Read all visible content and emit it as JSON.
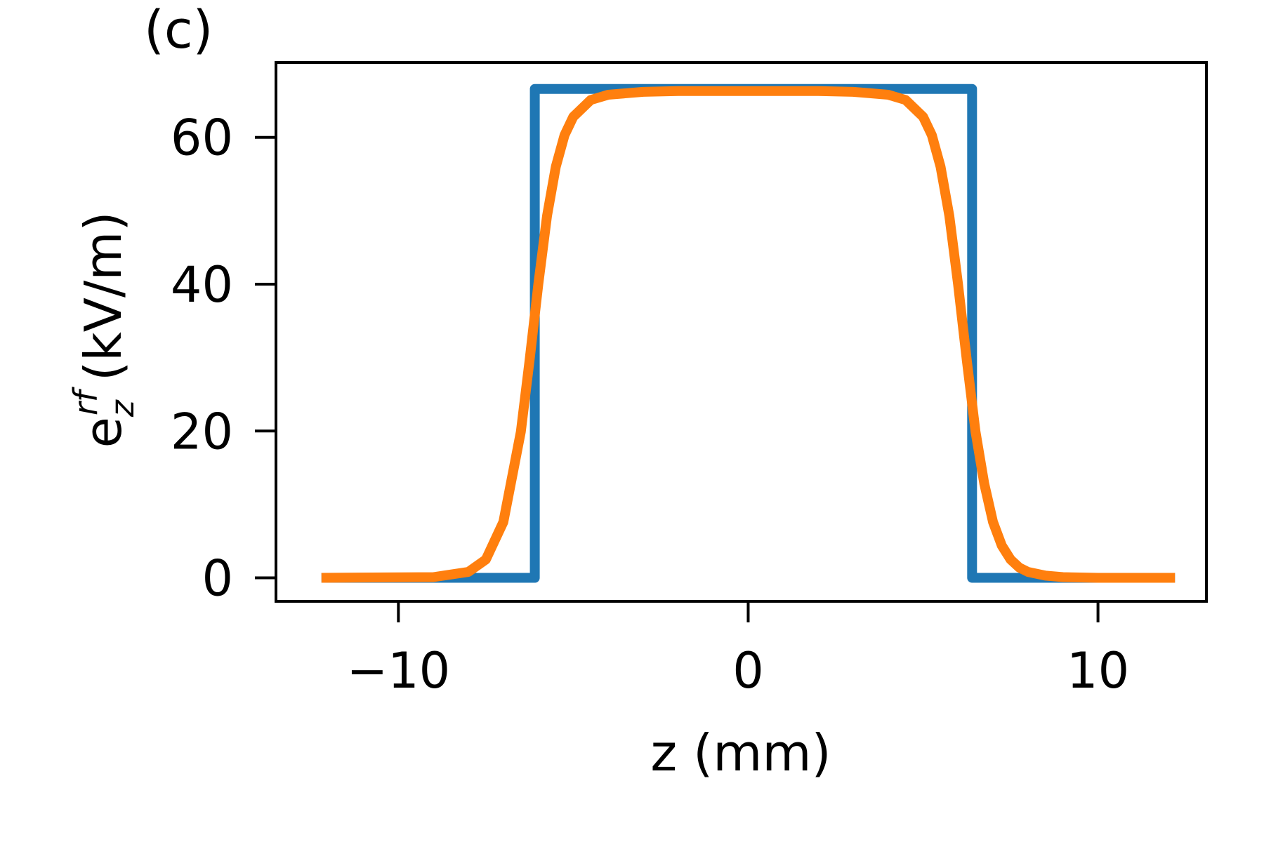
{
  "chart_data": {
    "type": "line",
    "panel_label": "(c)",
    "xlabel": "z (mm)",
    "ylabel": {
      "base": "e",
      "subscript": "z",
      "superscript": "rf",
      "unit": "(kV/m)"
    },
    "xlim": [
      -13.5,
      13.1
    ],
    "ylim": [
      -3.2,
      70.2
    ],
    "xticks": [
      -10,
      0,
      10
    ],
    "xtick_labels": [
      "−10",
      "0",
      "10"
    ],
    "yticks": [
      0,
      20,
      40,
      60
    ],
    "ytick_labels": [
      "0",
      "20",
      "40",
      "60"
    ],
    "grid": false,
    "series": [
      {
        "color": "#1f77b4",
        "x": [
          -12.2,
          -6.1,
          -6.1,
          6.4,
          6.4,
          12.2
        ],
        "y": [
          0,
          0,
          66.6,
          66.6,
          0,
          0
        ]
      },
      {
        "color": "#ff7f0e",
        "x": [
          -12.2,
          -9.0,
          -8.0,
          -7.5,
          -7.0,
          -6.5,
          -6.25,
          -6.0,
          -5.75,
          -5.5,
          -5.25,
          -5.0,
          -4.5,
          -4.0,
          -3.0,
          -2.0,
          0.0,
          2.0,
          3.0,
          4.0,
          4.5,
          5.0,
          5.25,
          5.5,
          5.75,
          6.0,
          6.25,
          6.5,
          6.75,
          7.0,
          7.25,
          7.5,
          7.75,
          8.0,
          8.5,
          9.0,
          10.0,
          12.2
        ],
        "y": [
          0,
          0.1,
          0.8,
          2.5,
          7.6,
          19.9,
          29.6,
          40.0,
          49.3,
          56.0,
          60.3,
          62.8,
          65.1,
          65.8,
          66.2,
          66.3,
          66.3,
          66.3,
          66.2,
          65.8,
          65.1,
          62.8,
          60.3,
          56.0,
          49.3,
          40.0,
          29.6,
          19.9,
          12.8,
          7.6,
          4.4,
          2.5,
          1.4,
          0.8,
          0.3,
          0.1,
          0,
          0
        ]
      }
    ]
  }
}
